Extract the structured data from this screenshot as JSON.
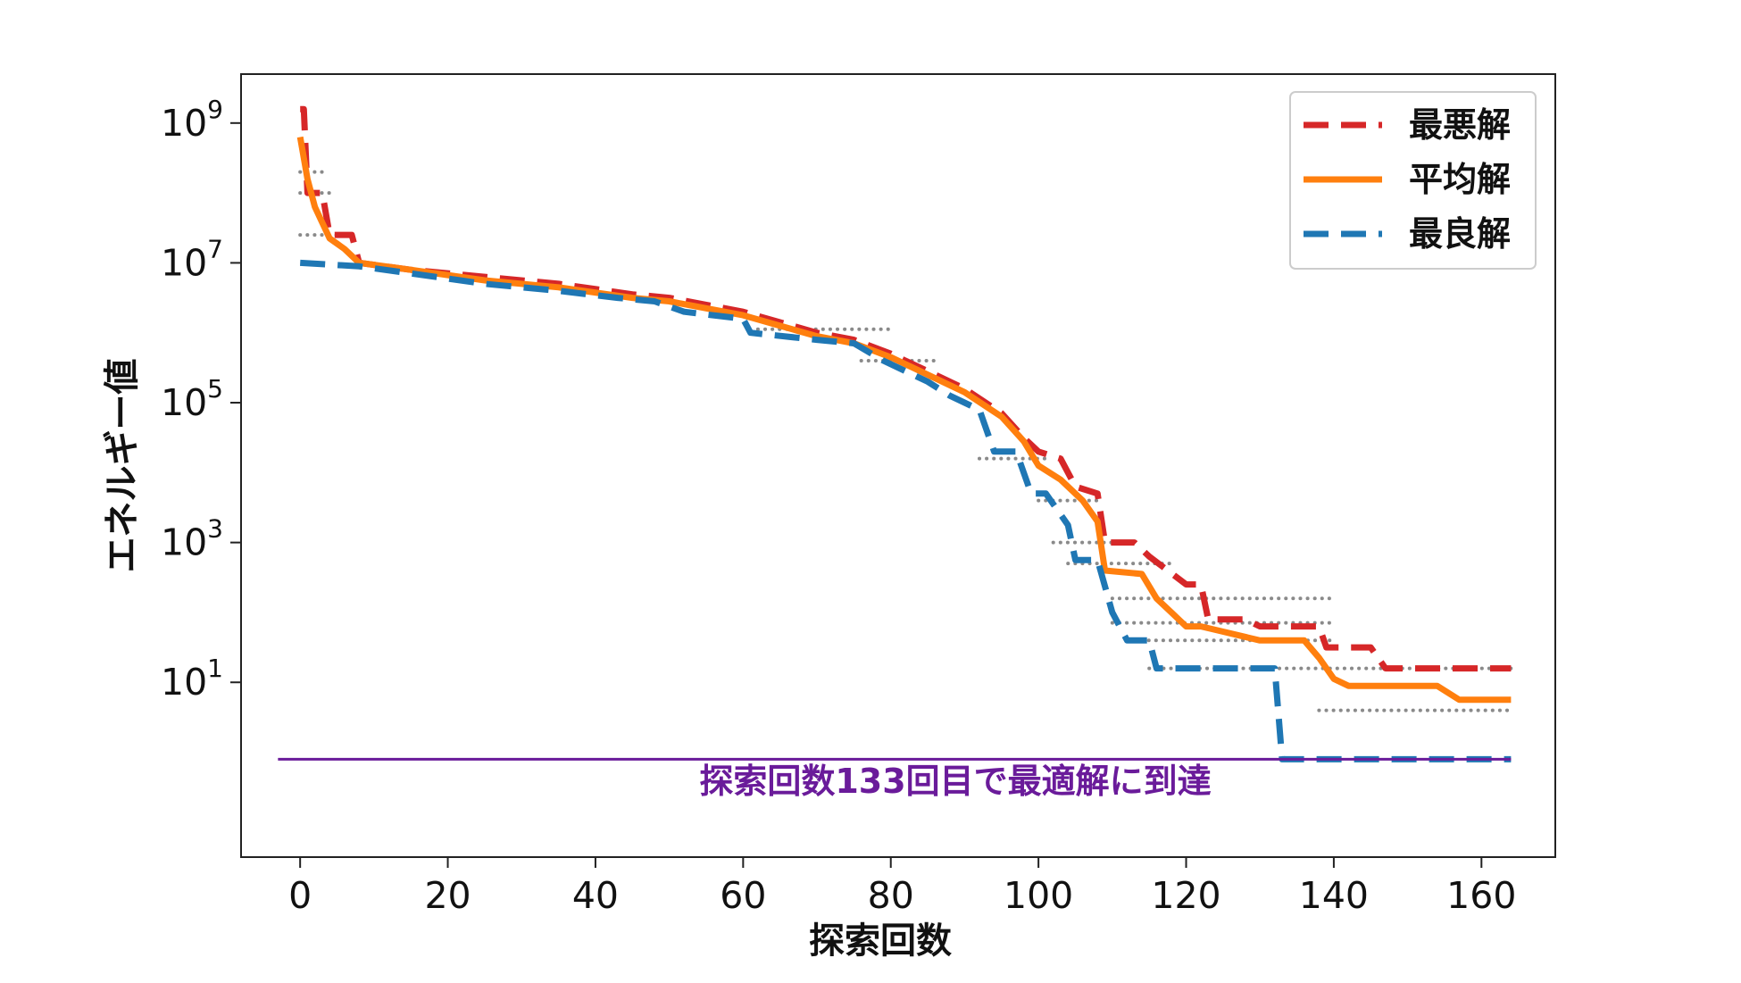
{
  "chart_data": {
    "type": "line",
    "xlabel": "探索回数",
    "ylabel": "エネルギー値",
    "xlim": [
      -8,
      170
    ],
    "ylim_log10": [
      -1.5,
      9.7
    ],
    "y_scale": "log",
    "x_ticks": [
      "0",
      "20",
      "40",
      "60",
      "80",
      "100",
      "120",
      "140",
      "160"
    ],
    "y_ticks": [
      {
        "base": "10",
        "exp": "9",
        "value_log10": 9
      },
      {
        "base": "10",
        "exp": "7",
        "value_log10": 7
      },
      {
        "base": "10",
        "exp": "5",
        "value_log10": 5
      },
      {
        "base": "10",
        "exp": "3",
        "value_log10": 3
      },
      {
        "base": "10",
        "exp": "1",
        "value_log10": 1
      }
    ],
    "grid": false,
    "legend_position": "top-right",
    "annotation": {
      "text": "探索回数133回目で最適解に到達",
      "color": "#6a1b9a",
      "line_y_log10": -0.1,
      "line_x_range": [
        -3,
        164
      ]
    },
    "series": [
      {
        "name": "最悪解",
        "color": "#d62728",
        "style": "dashed",
        "points": [
          [
            0,
            9.2
          ],
          [
            0.5,
            9.2
          ],
          [
            1,
            8.0
          ],
          [
            3,
            8.0
          ],
          [
            4,
            7.4
          ],
          [
            7,
            7.4
          ],
          [
            8,
            7.0
          ],
          [
            15,
            6.9
          ],
          [
            25,
            6.8
          ],
          [
            35,
            6.7
          ],
          [
            45,
            6.55
          ],
          [
            50,
            6.5
          ],
          [
            55,
            6.4
          ],
          [
            60,
            6.3
          ],
          [
            65,
            6.15
          ],
          [
            70,
            6.0
          ],
          [
            75,
            5.9
          ],
          [
            80,
            5.7
          ],
          [
            85,
            5.45
          ],
          [
            90,
            5.2
          ],
          [
            95,
            4.85
          ],
          [
            98,
            4.5
          ],
          [
            100,
            4.3
          ],
          [
            103,
            4.2
          ],
          [
            105,
            3.8
          ],
          [
            108,
            3.7
          ],
          [
            109,
            3.0
          ],
          [
            113,
            3.0
          ],
          [
            115,
            2.8
          ],
          [
            120,
            2.4
          ],
          [
            122,
            2.4
          ],
          [
            123,
            1.9
          ],
          [
            128,
            1.9
          ],
          [
            130,
            1.8
          ],
          [
            138,
            1.8
          ],
          [
            139,
            1.5
          ],
          [
            145,
            1.5
          ],
          [
            147,
            1.2
          ],
          [
            164,
            1.2
          ]
        ]
      },
      {
        "name": "平均解",
        "color": "#ff7f0e",
        "style": "solid",
        "points": [
          [
            0,
            8.8
          ],
          [
            1,
            8.2
          ],
          [
            2,
            7.8
          ],
          [
            4,
            7.35
          ],
          [
            6,
            7.2
          ],
          [
            8,
            7.0
          ],
          [
            15,
            6.9
          ],
          [
            25,
            6.75
          ],
          [
            35,
            6.65
          ],
          [
            45,
            6.5
          ],
          [
            50,
            6.45
          ],
          [
            55,
            6.35
          ],
          [
            60,
            6.25
          ],
          [
            65,
            6.1
          ],
          [
            70,
            5.95
          ],
          [
            75,
            5.85
          ],
          [
            80,
            5.65
          ],
          [
            85,
            5.4
          ],
          [
            90,
            5.15
          ],
          [
            95,
            4.8
          ],
          [
            98,
            4.45
          ],
          [
            100,
            4.1
          ],
          [
            103,
            3.9
          ],
          [
            106,
            3.6
          ],
          [
            108,
            3.3
          ],
          [
            109,
            2.6
          ],
          [
            114,
            2.55
          ],
          [
            116,
            2.2
          ],
          [
            118,
            2.0
          ],
          [
            120,
            1.8
          ],
          [
            122,
            1.8
          ],
          [
            124,
            1.75
          ],
          [
            130,
            1.6
          ],
          [
            136,
            1.6
          ],
          [
            138,
            1.35
          ],
          [
            140,
            1.05
          ],
          [
            142,
            0.95
          ],
          [
            154,
            0.95
          ],
          [
            157,
            0.75
          ],
          [
            164,
            0.75
          ]
        ]
      },
      {
        "name": "最良解",
        "color": "#1f77b4",
        "style": "dashed",
        "points": [
          [
            0,
            7.0
          ],
          [
            8,
            6.95
          ],
          [
            15,
            6.85
          ],
          [
            25,
            6.7
          ],
          [
            35,
            6.6
          ],
          [
            43,
            6.5
          ],
          [
            48,
            6.45
          ],
          [
            52,
            6.3
          ],
          [
            60,
            6.2
          ],
          [
            61,
            6.0
          ],
          [
            70,
            5.9
          ],
          [
            75,
            5.85
          ],
          [
            79,
            5.6
          ],
          [
            85,
            5.3
          ],
          [
            88,
            5.1
          ],
          [
            92,
            4.9
          ],
          [
            94,
            4.3
          ],
          [
            97,
            4.3
          ],
          [
            99,
            3.7
          ],
          [
            101,
            3.7
          ],
          [
            104,
            3.25
          ],
          [
            105,
            2.75
          ],
          [
            108,
            2.75
          ],
          [
            110,
            2.0
          ],
          [
            112,
            1.6
          ],
          [
            115,
            1.6
          ],
          [
            116,
            1.2
          ],
          [
            132,
            1.2
          ],
          [
            133,
            -0.1
          ],
          [
            164,
            -0.1
          ]
        ]
      }
    ],
    "trial_markers": [
      {
        "y_log10": 8.3,
        "x_range": [
          0,
          3
        ]
      },
      {
        "y_log10": 8.0,
        "x_range": [
          0,
          4
        ]
      },
      {
        "y_log10": 7.4,
        "x_range": [
          0,
          7
        ]
      },
      {
        "y_log10": 6.05,
        "x_range": [
          62,
          80
        ]
      },
      {
        "y_log10": 5.6,
        "x_range": [
          76,
          86
        ]
      },
      {
        "y_log10": 4.2,
        "x_range": [
          92,
          101
        ]
      },
      {
        "y_log10": 3.6,
        "x_range": [
          100,
          108
        ]
      },
      {
        "y_log10": 3.0,
        "x_range": [
          102,
          112
        ]
      },
      {
        "y_log10": 2.7,
        "x_range": [
          104,
          118
        ]
      },
      {
        "y_log10": 2.2,
        "x_range": [
          110,
          140
        ]
      },
      {
        "y_log10": 1.85,
        "x_range": [
          110,
          140
        ]
      },
      {
        "y_log10": 1.6,
        "x_range": [
          112,
          140
        ]
      },
      {
        "y_log10": 1.2,
        "x_range": [
          115,
          164
        ]
      },
      {
        "y_log10": 0.6,
        "x_range": [
          138,
          164
        ]
      }
    ]
  }
}
